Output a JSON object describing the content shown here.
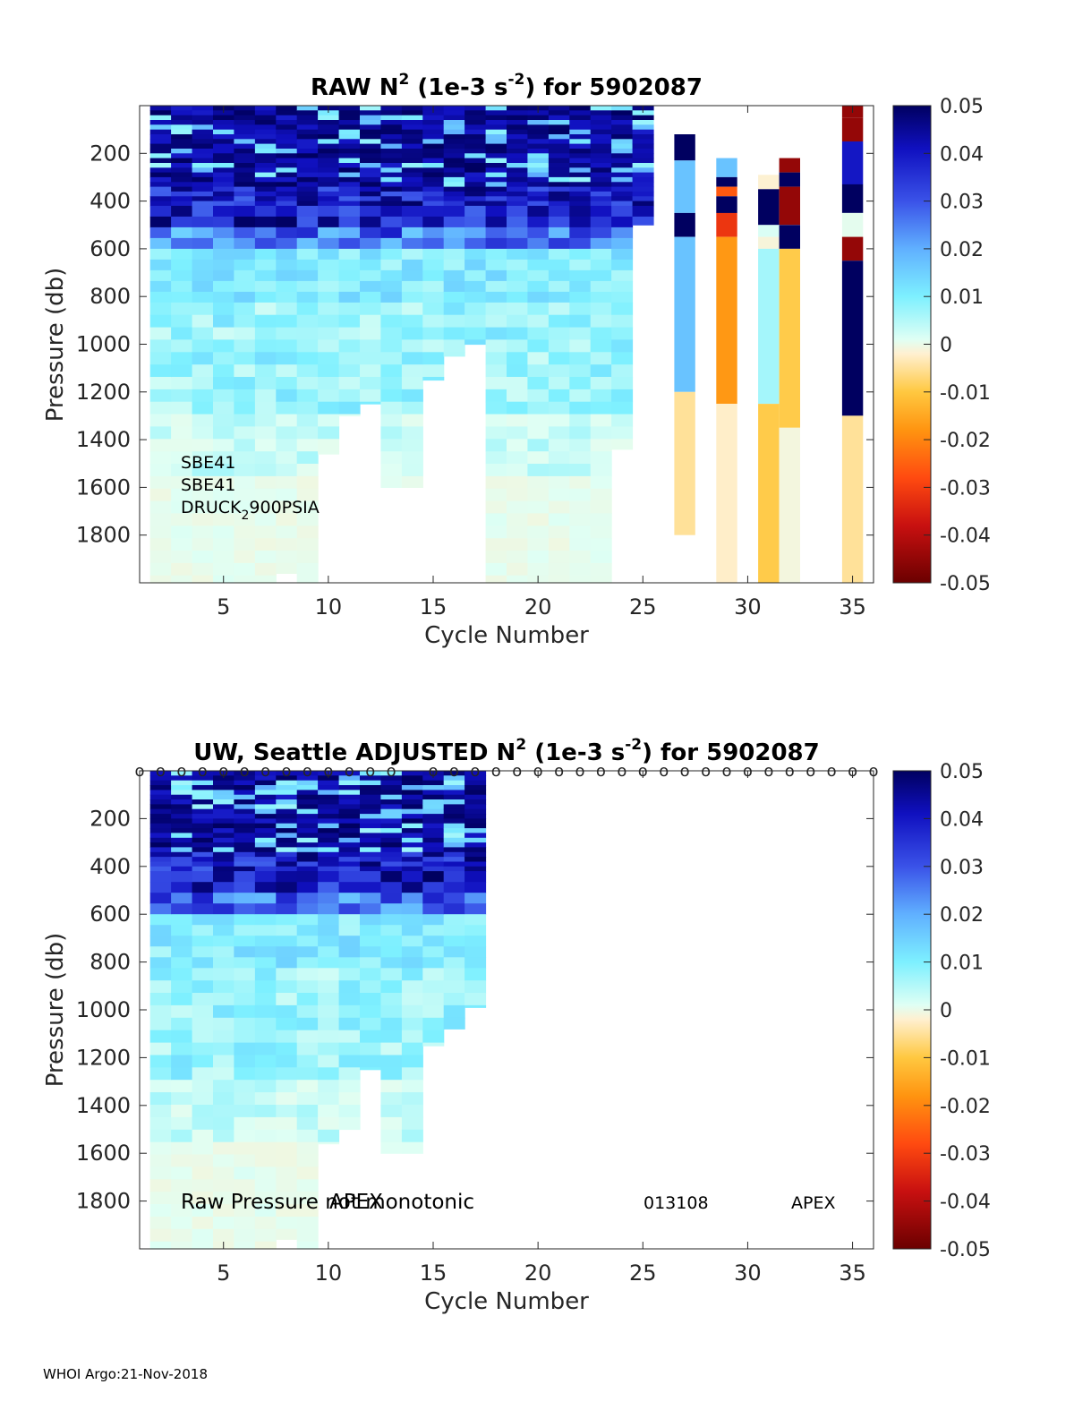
{
  "footer": "WHOI Argo:21-Nov-2018",
  "colors": {
    "colormap": [
      "#6b0000",
      "#c81010",
      "#ff4a10",
      "#ff9410",
      "#ffc840",
      "#fff0d0",
      "#dffff4",
      "#7df0ff",
      "#60b0ff",
      "#3a52e8",
      "#1010c0",
      "#000060"
    ],
    "axis": "#262626",
    "background": "#ffffff"
  },
  "chart_data": [
    {
      "type": "heatmap",
      "title_parts": [
        "RAW N",
        "2",
        " (1e-3 s",
        "-2",
        ") for 5902087"
      ],
      "xlabel": "Cycle Number",
      "ylabel": "Pressure (db)",
      "xlim": [
        1,
        36
      ],
      "ylim": [
        2000,
        0
      ],
      "xticks": [
        5,
        10,
        15,
        20,
        25,
        30,
        35
      ],
      "yticks": [
        200,
        400,
        600,
        800,
        1000,
        1200,
        1400,
        1600,
        1800
      ],
      "colorbar": {
        "clim": [
          -0.05,
          0.05
        ],
        "ticks": [
          "0.05",
          "0.04",
          "0.03",
          "0.02",
          "0.01",
          "0",
          "-0.01",
          "-0.02",
          "-0.03",
          "-0.04",
          "-0.05"
        ]
      },
      "annotations": [
        {
          "id": "sensor-1",
          "parts": [
            "SBE41"
          ]
        },
        {
          "id": "sensor-2",
          "parts": [
            "SBE41"
          ]
        },
        {
          "id": "sensor-3",
          "parts": [
            "DRUCK",
            "2",
            "900PSIA"
          ]
        }
      ],
      "columns": [
        {
          "cycle": 2,
          "max_p": 2000
        },
        {
          "cycle": 3,
          "max_p": 2000
        },
        {
          "cycle": 4,
          "max_p": 2000
        },
        {
          "cycle": 5,
          "max_p": 2000
        },
        {
          "cycle": 6,
          "max_p": 2000
        },
        {
          "cycle": 7,
          "max_p": 2000
        },
        {
          "cycle": 8,
          "max_p": 1960
        },
        {
          "cycle": 9,
          "max_p": 2000
        },
        {
          "cycle": 10,
          "max_p": 1460
        },
        {
          "cycle": 11,
          "max_p": 1300
        },
        {
          "cycle": 12,
          "max_p": 1250
        },
        {
          "cycle": 13,
          "max_p": 1600
        },
        {
          "cycle": 14,
          "max_p": 1600
        },
        {
          "cycle": 15,
          "max_p": 1150
        },
        {
          "cycle": 16,
          "max_p": 1050
        },
        {
          "cycle": 17,
          "max_p": 1000
        },
        {
          "cycle": 18,
          "max_p": 2000
        },
        {
          "cycle": 19,
          "max_p": 2000
        },
        {
          "cycle": 20,
          "max_p": 2000
        },
        {
          "cycle": 21,
          "max_p": 2000
        },
        {
          "cycle": 22,
          "max_p": 2000
        },
        {
          "cycle": 23,
          "max_p": 2000
        },
        {
          "cycle": 24,
          "max_p": 1440
        },
        {
          "cycle": 25,
          "max_p": 500
        }
      ],
      "segments": [
        {
          "cycle": 27,
          "from": 120,
          "to": 230,
          "value": 0.05
        },
        {
          "cycle": 27,
          "from": 230,
          "to": 450,
          "value": 0.02
        },
        {
          "cycle": 27,
          "from": 450,
          "to": 550,
          "value": 0.05
        },
        {
          "cycle": 27,
          "from": 550,
          "to": 1200,
          "value": 0.02
        },
        {
          "cycle": 27,
          "from": 1200,
          "to": 1800,
          "value": -0.008
        },
        {
          "cycle": 29,
          "from": 220,
          "to": 300,
          "value": 0.02
        },
        {
          "cycle": 29,
          "from": 300,
          "to": 340,
          "value": 0.05
        },
        {
          "cycle": 29,
          "from": 340,
          "to": 380,
          "value": -0.03
        },
        {
          "cycle": 29,
          "from": 380,
          "to": 450,
          "value": 0.05
        },
        {
          "cycle": 29,
          "from": 450,
          "to": 550,
          "value": -0.035
        },
        {
          "cycle": 29,
          "from": 550,
          "to": 1250,
          "value": -0.022
        },
        {
          "cycle": 29,
          "from": 1250,
          "to": 2000,
          "value": -0.005
        },
        {
          "cycle": 31,
          "from": 290,
          "to": 350,
          "value": -0.004
        },
        {
          "cycle": 31,
          "from": 350,
          "to": 500,
          "value": 0.05
        },
        {
          "cycle": 31,
          "from": 500,
          "to": 550,
          "value": 0.005
        },
        {
          "cycle": 31,
          "from": 550,
          "to": 600,
          "value": -0.002
        },
        {
          "cycle": 31,
          "from": 600,
          "to": 1250,
          "value": 0.01
        },
        {
          "cycle": 31,
          "from": 1250,
          "to": 2000,
          "value": -0.013
        },
        {
          "cycle": 32,
          "from": 220,
          "to": 280,
          "value": -0.046
        },
        {
          "cycle": 32,
          "from": 280,
          "to": 340,
          "value": 0.05
        },
        {
          "cycle": 32,
          "from": 340,
          "to": 500,
          "value": -0.046
        },
        {
          "cycle": 32,
          "from": 500,
          "to": 600,
          "value": 0.05
        },
        {
          "cycle": 32,
          "from": 600,
          "to": 1350,
          "value": -0.013
        },
        {
          "cycle": 32,
          "from": 1350,
          "to": 2000,
          "value": -0.001
        },
        {
          "cycle": 35,
          "from": 0,
          "to": 50,
          "value": -0.046
        },
        {
          "cycle": 35,
          "from": 50,
          "to": 150,
          "value": -0.046
        },
        {
          "cycle": 35,
          "from": 150,
          "to": 330,
          "value": 0.04
        },
        {
          "cycle": 35,
          "from": 330,
          "to": 450,
          "value": 0.05
        },
        {
          "cycle": 35,
          "from": 450,
          "to": 550,
          "value": 0.003
        },
        {
          "cycle": 35,
          "from": 550,
          "to": 650,
          "value": -0.046
        },
        {
          "cycle": 35,
          "from": 650,
          "to": 1300,
          "value": 0.05
        },
        {
          "cycle": 35,
          "from": 1300,
          "to": 2000,
          "value": -0.008
        }
      ]
    },
    {
      "type": "heatmap",
      "title_parts": [
        "UW, Seattle  ADJUSTED N",
        "2",
        " (1e-3 s",
        "-2",
        ") for 5902087"
      ],
      "xlabel": "Cycle Number",
      "ylabel": "Pressure (db)",
      "xlim": [
        1,
        36
      ],
      "ylim": [
        2000,
        0
      ],
      "xticks": [
        5,
        10,
        15,
        20,
        25,
        30,
        35
      ],
      "yticks": [
        200,
        400,
        600,
        800,
        1000,
        1200,
        1400,
        1600,
        1800
      ],
      "colorbar": {
        "clim": [
          -0.05,
          0.05
        ],
        "ticks": [
          "0.05",
          "0.04",
          "0.03",
          "0.02",
          "0.01",
          "0",
          "-0.01",
          "-0.02",
          "-0.03",
          "-0.04",
          "-0.05"
        ]
      },
      "flag_markers": {
        "symbol": "o",
        "cycles": [
          1,
          2,
          3,
          4,
          5,
          6,
          7,
          8,
          9,
          10,
          11,
          12,
          13,
          15,
          16,
          17,
          18,
          19,
          20,
          21,
          22,
          23,
          24,
          25,
          26,
          27,
          28,
          29,
          30,
          31,
          32,
          33,
          34,
          35,
          36
        ]
      },
      "annotations": [
        {
          "id": "note-raw-pressure",
          "parts": [
            "Raw Pressure not monotonic"
          ]
        },
        {
          "id": "note-apex-1",
          "parts": [
            "APEX"
          ]
        },
        {
          "id": "note-serial",
          "parts": [
            "013108"
          ]
        },
        {
          "id": "note-apex-2",
          "parts": [
            "APEX"
          ]
        }
      ],
      "columns": [
        {
          "cycle": 2,
          "max_p": 2000
        },
        {
          "cycle": 3,
          "max_p": 2000
        },
        {
          "cycle": 4,
          "max_p": 2000
        },
        {
          "cycle": 5,
          "max_p": 2000
        },
        {
          "cycle": 6,
          "max_p": 2000
        },
        {
          "cycle": 7,
          "max_p": 2000
        },
        {
          "cycle": 8,
          "max_p": 1960
        },
        {
          "cycle": 9,
          "max_p": 2000
        },
        {
          "cycle": 10,
          "max_p": 1560
        },
        {
          "cycle": 11,
          "max_p": 1500
        },
        {
          "cycle": 12,
          "max_p": 1250
        },
        {
          "cycle": 13,
          "max_p": 1600
        },
        {
          "cycle": 14,
          "max_p": 1600
        },
        {
          "cycle": 15,
          "max_p": 1150
        },
        {
          "cycle": 16,
          "max_p": 1080
        },
        {
          "cycle": 17,
          "max_p": 990
        }
      ]
    }
  ]
}
